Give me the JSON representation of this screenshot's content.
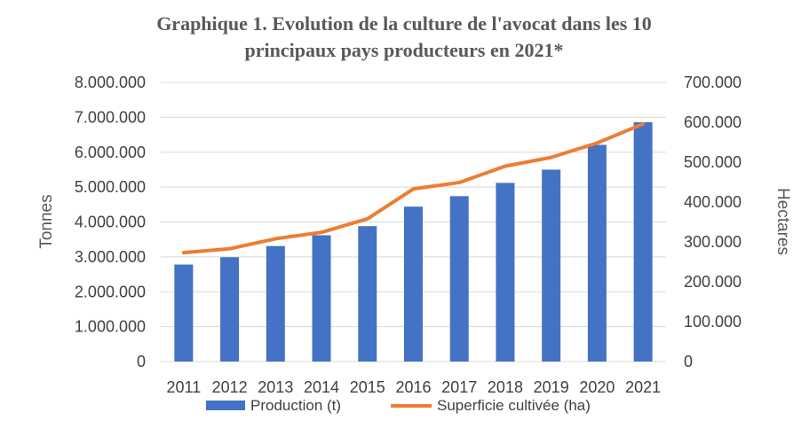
{
  "chart_data": {
    "type": "bar",
    "title_line1": "Graphique 1. Evolution de la culture de l'avocat dans les 10",
    "title_line2": "principaux pays producteurs en 2021*",
    "categories": [
      "2011",
      "2012",
      "2013",
      "2014",
      "2015",
      "2016",
      "2017",
      "2018",
      "2019",
      "2020",
      "2021"
    ],
    "series": [
      {
        "name": "Production (t)",
        "kind": "bar",
        "axis": "left",
        "color": "#4472C4",
        "values": [
          2780000,
          2990000,
          3310000,
          3620000,
          3880000,
          4440000,
          4740000,
          5120000,
          5500000,
          6210000,
          6860000
        ]
      },
      {
        "name": "Superficie cultivée (ha)",
        "kind": "line",
        "axis": "right",
        "color": "#ED7D31",
        "values": [
          273000,
          283000,
          308000,
          324000,
          358000,
          433000,
          449000,
          490000,
          512000,
          548000,
          596000
        ]
      }
    ],
    "ylabel_left": "Tonnes",
    "ylabel_right": "Hectares",
    "ylim_left": [
      0,
      8000000
    ],
    "ylim_right": [
      0,
      700000
    ],
    "yticks_left": [
      "0",
      "1.000.000",
      "2.000.000",
      "3.000.000",
      "4.000.000",
      "5.000.000",
      "6.000.000",
      "7.000.000",
      "8.000.000"
    ],
    "yticks_right": [
      "0",
      "100.000",
      "200.000",
      "300.000",
      "400.000",
      "500.000",
      "600.000",
      "700.000"
    ],
    "grid": true,
    "legend_position": "bottom"
  }
}
